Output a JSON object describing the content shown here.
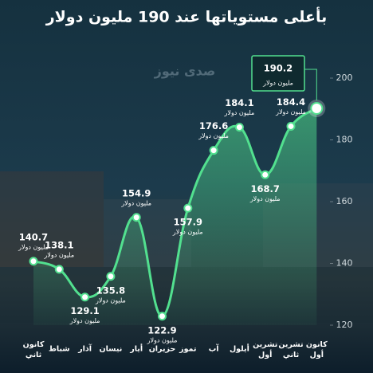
{
  "chart_data": {
    "type": "line",
    "title": "بأعلى مستوياتها عند 190 مليون دولار",
    "watermark": "صدى نيوز",
    "categories": [
      "كانون ثاني",
      "شباط",
      "آذار",
      "نيسان",
      "أيار",
      "حزيران",
      "تموز",
      "آب",
      "أيلول",
      "تشرين أول",
      "تشرين ثاني",
      "كانون أول"
    ],
    "values": [
      140.7,
      138.1,
      129.1,
      135.8,
      154.9,
      122.9,
      157.9,
      176.6,
      184.1,
      168.7,
      184.4,
      190.2
    ],
    "unit_label": "مليون دولار",
    "color": "#52e08f",
    "ylim": [
      120,
      200
    ],
    "yticks": [
      120,
      140,
      160,
      180,
      200
    ]
  }
}
